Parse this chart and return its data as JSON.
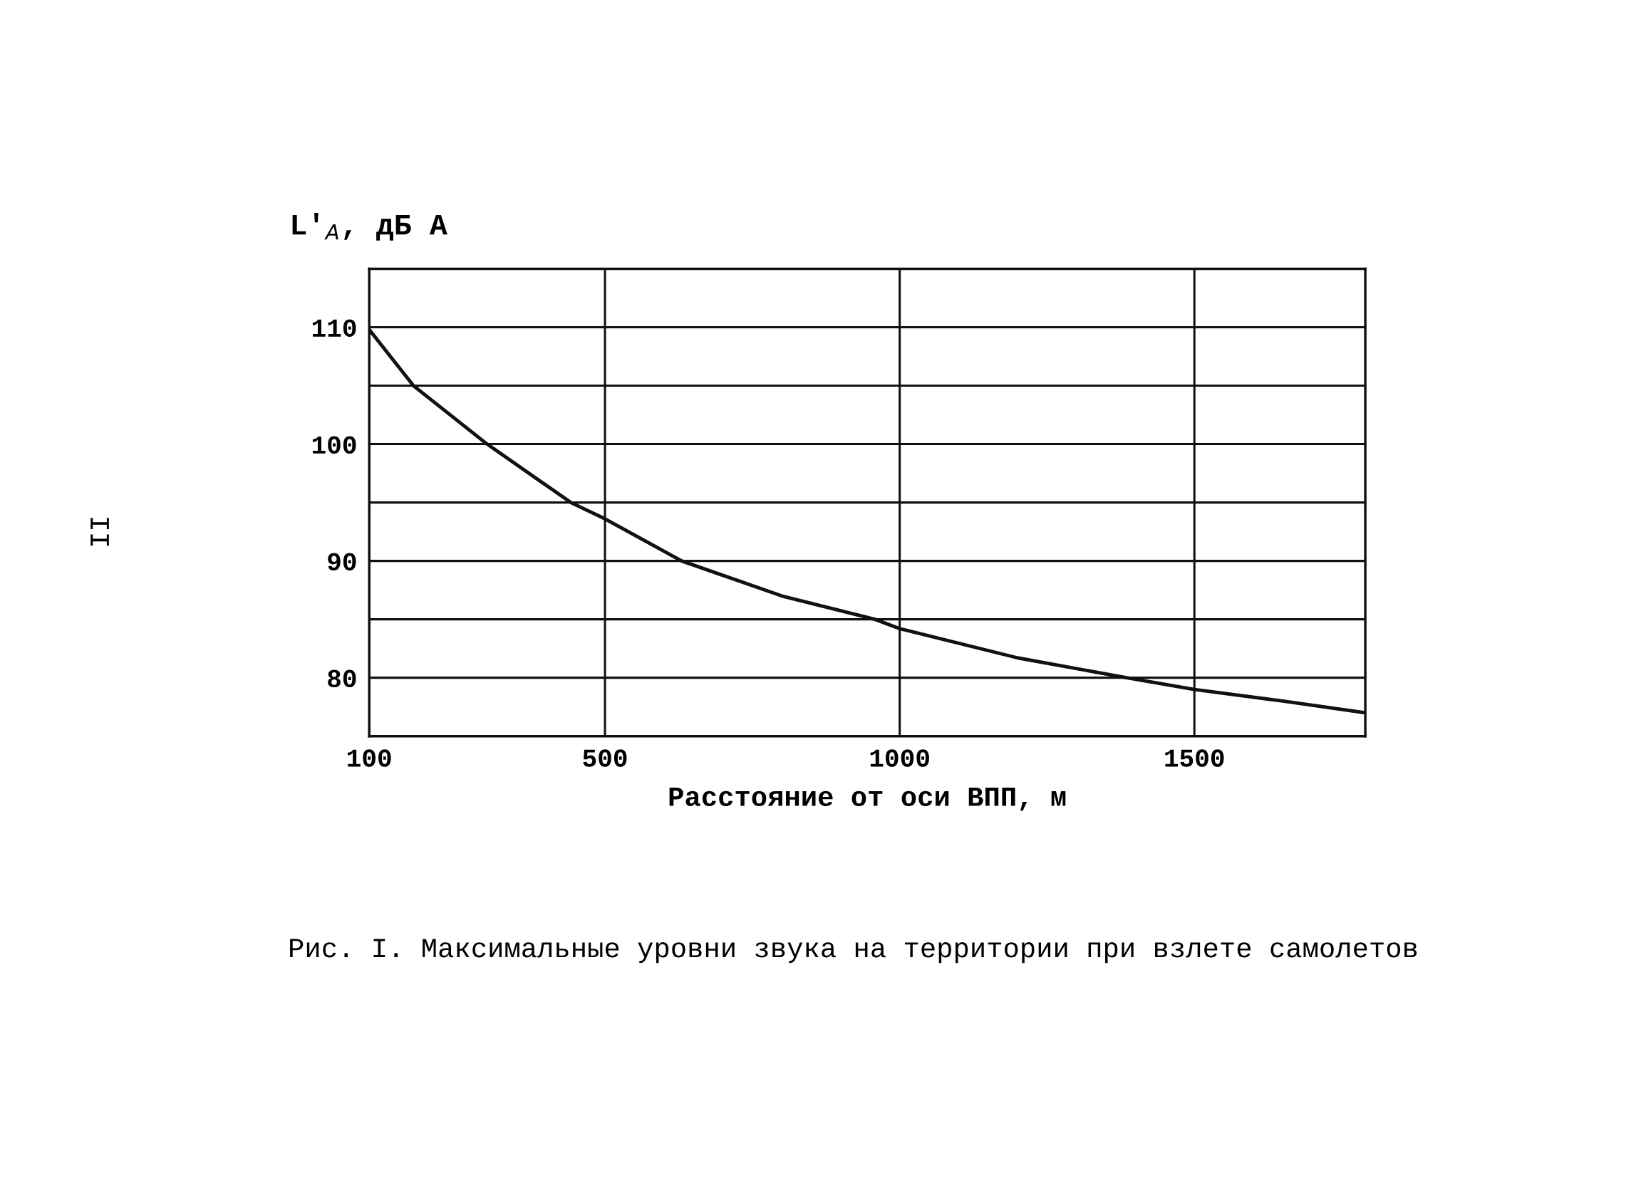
{
  "chart_data": {
    "type": "line",
    "xlabel": "Расстояние от оси ВПП, м",
    "ylabel": "L′$_{A}$, дБ А",
    "annotations": [
      "Рис. I. Максимальные уровни звука на территории при взлете самолетов",
      "II"
    ],
    "x": [
      100,
      175,
      300,
      442,
      500,
      630,
      800,
      958,
      1000,
      1200,
      1385,
      1500,
      1650,
      1790
    ],
    "series": [
      {
        "color": "#111111",
        "values": [
          109.8,
          105,
          100,
          95,
          93.6,
          90,
          87,
          85,
          84.2,
          81.7,
          80,
          79,
          78,
          77
        ]
      }
    ],
    "xlim": [
      100,
      1790
    ],
    "xticks": [
      100,
      500,
      1000,
      1500
    ],
    "ylim": [
      75,
      115
    ],
    "yticks": [
      {
        "value": 80,
        "label": "80"
      },
      {
        "value": 85,
        "label": null
      },
      {
        "value": 90,
        "label": "90"
      },
      {
        "value": 95,
        "label": null
      },
      {
        "value": 100,
        "label": "100"
      },
      {
        "value": 105,
        "label": null
      },
      {
        "value": 110,
        "label": "110"
      }
    ],
    "grid": true,
    "marker": "none",
    "line_style": "solid"
  }
}
